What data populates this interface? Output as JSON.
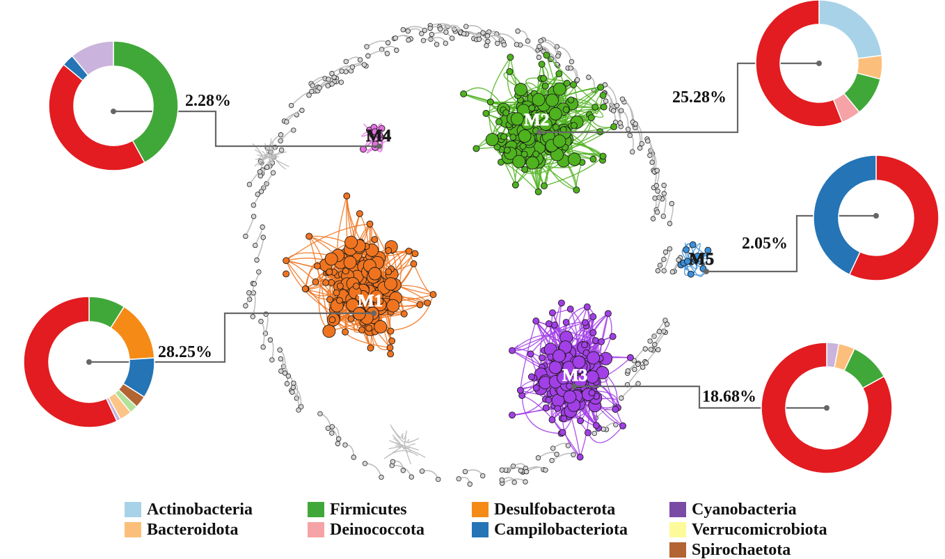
{
  "modules": [
    {
      "id": "M1",
      "label": "M1",
      "color": "#f0741f",
      "percent": "28.25%",
      "donut": [
        [
          "Actinobacteria",
          0
        ],
        [
          "Bacteroidota",
          0
        ],
        [
          "Firmicutes",
          9
        ],
        [
          "Deinococcota",
          0
        ],
        [
          "Desulfobacterota",
          15
        ],
        [
          "Campilobacteriota",
          10
        ],
        [
          "Cyanobacteria",
          0
        ],
        [
          "Verrucomicrobiota",
          0
        ],
        [
          "Spirochaetota",
          3
        ],
        [
          "Lightgreen",
          2
        ],
        [
          "Lightorange",
          3
        ],
        [
          "Lavender",
          1
        ],
        [
          "Others",
          57
        ]
      ]
    },
    {
      "id": "M2",
      "label": "M2",
      "color": "#4fb21f",
      "percent": "25.28%",
      "donut": [
        [
          "Actinobacteria",
          23
        ],
        [
          "Bacteroidota",
          6
        ],
        [
          "Firmicutes",
          10
        ],
        [
          "Deinococcota",
          5
        ],
        [
          "Others",
          56
        ]
      ]
    },
    {
      "id": "M3",
      "label": "M3",
      "color": "#a23fe6",
      "percent": "18.68%",
      "donut": [
        [
          "Lavender",
          3
        ],
        [
          "Bacteroidota",
          4
        ],
        [
          "Firmicutes",
          10
        ],
        [
          "Others",
          83
        ]
      ]
    },
    {
      "id": "M4",
      "label": "M4",
      "color": "#e46fe0",
      "percent": "2.28%",
      "donut": [
        [
          "Firmicutes",
          42
        ],
        [
          "Others",
          44
        ],
        [
          "Campilobacteriota",
          3
        ],
        [
          "Lavender",
          11
        ]
      ]
    },
    {
      "id": "M5",
      "label": "M5",
      "color": "#3b8fd8",
      "percent": "2.05%",
      "donut": [
        [
          "Others",
          57
        ],
        [
          "Campilobacteriota",
          43
        ]
      ]
    }
  ],
  "palette": {
    "Actinobacteria": "#a8d2e7",
    "Bacteroidota": "#fbbf7b",
    "Firmicutes": "#40a839",
    "Deinococcota": "#f5a3a6",
    "Desulfobacterota": "#f58b16",
    "Campilobacteriota": "#2474b6",
    "Cyanobacteria": "#7a4ba5",
    "Verrucomicrobiota": "#fdfa9c",
    "Spirochaetota": "#b36433",
    "Lightgreen": "#b4e19a",
    "Lightorange": "#fcc486",
    "Lavender": "#cab3dc",
    "Others": "#e21c20"
  },
  "legend": [
    {
      "name": "Actinobacteria",
      "color": "#a8d2e7"
    },
    {
      "name": "Bacteroidota",
      "color": "#fbbf7b"
    },
    {
      "name": "Firmicutes",
      "color": "#40a839"
    },
    {
      "name": "Deinococcota",
      "color": "#f5a3a6"
    },
    {
      "name": "Desulfobacterota",
      "color": "#f58b16"
    },
    {
      "name": "Campilobacteriota",
      "color": "#2474b6"
    },
    {
      "name": "Cyanobacteria",
      "color": "#7a4ba5"
    },
    {
      "name": "Verrucomicrobiota",
      "color": "#fdfa9c"
    },
    {
      "name": "Spirochaetota",
      "color": "#b36433"
    }
  ],
  "peripheral_color": "#bdbdbd"
}
